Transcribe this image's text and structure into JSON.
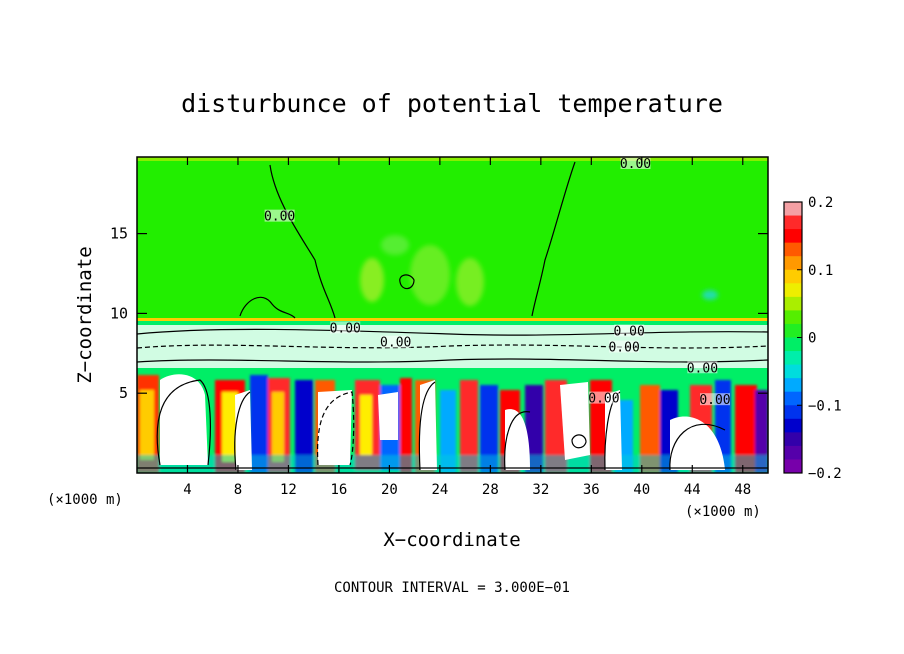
{
  "chart_data": {
    "type": "heatmap",
    "title": "disturbunce of potential temperature",
    "xlabel": "X−coordinate",
    "ylabel": "Z−coordinate",
    "x_unit_left": "(×1000 m)",
    "x_unit_right": "(×1000 m)",
    "footer": "CONTOUR INTERVAL = 3.000E−01",
    "xlim": [
      0,
      50
    ],
    "ylim": [
      0,
      19.8
    ],
    "xticks": [
      4,
      8,
      12,
      16,
      20,
      24,
      28,
      32,
      36,
      40,
      44,
      48
    ],
    "yticks": [
      5,
      10,
      15
    ],
    "contour_labels": [
      {
        "text": "0.00",
        "x": 39.5,
        "y": 19.3
      },
      {
        "text": "0.00",
        "x": 11.3,
        "y": 16.0
      },
      {
        "text": "0.00",
        "x": 16.5,
        "y": 9.0
      },
      {
        "text": "0.00",
        "x": 20.5,
        "y": 8.1
      },
      {
        "text": "0.00",
        "x": 39.0,
        "y": 8.8
      },
      {
        "text": "0.00",
        "x": 38.6,
        "y": 7.8
      },
      {
        "text": "0.00",
        "x": 44.8,
        "y": 6.5
      },
      {
        "text": "0.00",
        "x": 37.0,
        "y": 4.6
      },
      {
        "text": "0.00",
        "x": 45.8,
        "y": 4.5
      }
    ],
    "colorbar": {
      "min": -0.2,
      "max": 0.2,
      "tick_labels": [
        "0.2",
        "0.1",
        "0",
        "−0.1",
        "−0.2"
      ],
      "tick_values": [
        0.2,
        0.1,
        0,
        -0.1,
        -0.2
      ],
      "colors": [
        "#f4a0a4",
        "#ff2a2a",
        "#ff0000",
        "#ff5a00",
        "#ff9900",
        "#ffcc00",
        "#eeee00",
        "#aaee00",
        "#55ee00",
        "#22ee22",
        "#00ee66",
        "#00eeaa",
        "#00dddd",
        "#00aaff",
        "#0066ff",
        "#0033ee",
        "#0000cc",
        "#3300aa",
        "#5500aa",
        "#7700aa"
      ]
    }
  }
}
